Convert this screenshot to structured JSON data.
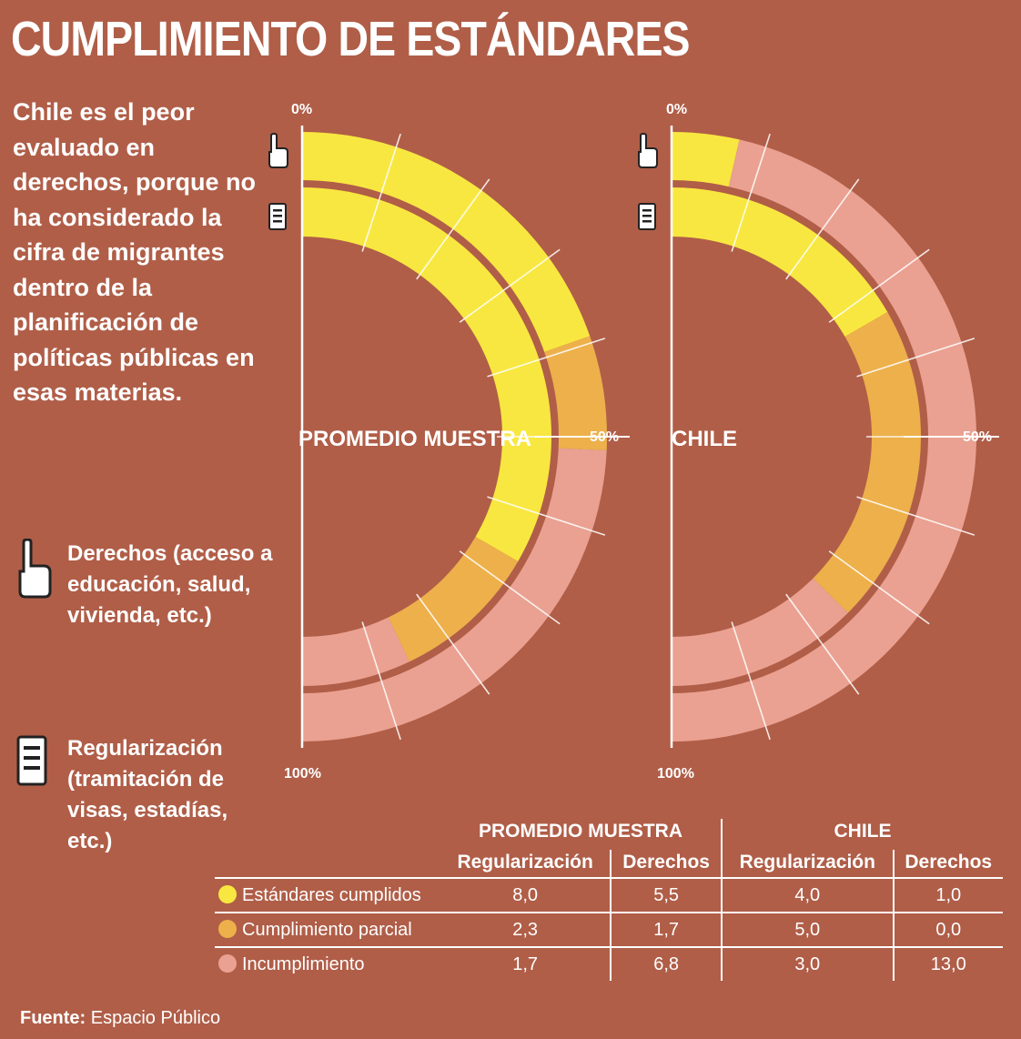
{
  "title": "CUMPLIMIENTO DE ESTÁNDARES",
  "intro_text": "Chile es el peor evaluado en derechos, porque no ha considerado la cifra de migrantes dentro de la planificación de políticas públicas en esas materias.",
  "legend": {
    "derechos": {
      "icon": "hand-pointer-icon",
      "text": "Derechos (acceso a educación, salud, vivienda, etc.)"
    },
    "regularizacion": {
      "icon": "document-icon",
      "text": "Regularización (tramitación de visas, estadías, etc.)"
    }
  },
  "colors": {
    "background": "#b05e48",
    "cumplidos": "#f8e740",
    "parcial": "#edb04b",
    "incumplimiento": "#eaa191"
  },
  "chart_data": {
    "type": "donut-semicircle",
    "tick_labels": {
      "start": "0%",
      "middle": "50%",
      "end": "100%"
    },
    "categories": [
      "Estándares cumplidos",
      "Cumplimiento parcial",
      "Incumplimiento"
    ],
    "charts": [
      {
        "label": "PROMEDIO MUESTRA",
        "derechos": [
          5.5,
          1.7,
          6.8
        ],
        "regularizacion": [
          8.0,
          2.3,
          1.7
        ]
      },
      {
        "label": "CHILE",
        "derechos": [
          1.0,
          0.0,
          13.0
        ],
        "regularizacion": [
          4.0,
          5.0,
          3.0
        ]
      }
    ]
  },
  "table": {
    "group_headers": [
      "PROMEDIO MUESTRA",
      "CHILE"
    ],
    "col_headers": [
      "Regularización",
      "Derechos",
      "Regularización",
      "Derechos"
    ],
    "rows": [
      {
        "label": "Estándares cumplidos",
        "values": [
          "8,0",
          "5,5",
          "4,0",
          "1,0"
        ]
      },
      {
        "label": "Cumplimiento parcial",
        "values": [
          "2,3",
          "1,7",
          "5,0",
          "0,0"
        ]
      },
      {
        "label": "Incumplimiento",
        "values": [
          "1,7",
          "6,8",
          "3,0",
          "13,0"
        ]
      }
    ]
  },
  "source": {
    "label": "Fuente:",
    "text": "Espacio Público"
  }
}
